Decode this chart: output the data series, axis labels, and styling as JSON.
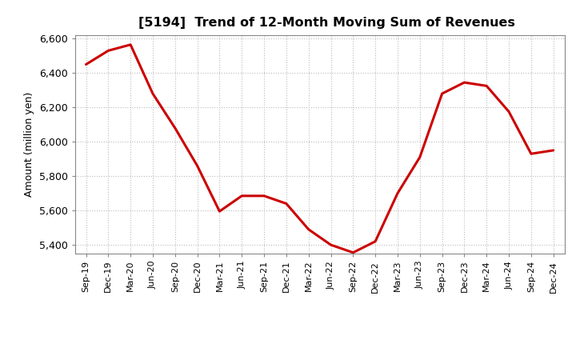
{
  "title": "[5194]  Trend of 12-Month Moving Sum of Revenues",
  "ylabel": "Amount (million yen)",
  "background_color": "#ffffff",
  "line_color": "#cc0000",
  "grid_color": "#bbbbbb",
  "xlabels": [
    "Sep-19",
    "Dec-19",
    "Mar-20",
    "Jun-20",
    "Sep-20",
    "Dec-20",
    "Mar-21",
    "Jun-21",
    "Sep-21",
    "Dec-21",
    "Mar-22",
    "Jun-22",
    "Sep-22",
    "Dec-22",
    "Mar-23",
    "Jun-23",
    "Sep-23",
    "Dec-23",
    "Mar-24",
    "Jun-24",
    "Sep-24",
    "Dec-24"
  ],
  "values": [
    6450,
    6530,
    6565,
    6280,
    6080,
    5860,
    5595,
    5685,
    5685,
    5640,
    5490,
    5400,
    5355,
    5420,
    5700,
    5910,
    6280,
    6345,
    6325,
    6175,
    5930,
    5950
  ],
  "ylim": [
    5350,
    6620
  ],
  "yticks": [
    5400,
    5600,
    5800,
    6000,
    6200,
    6400,
    6600
  ]
}
